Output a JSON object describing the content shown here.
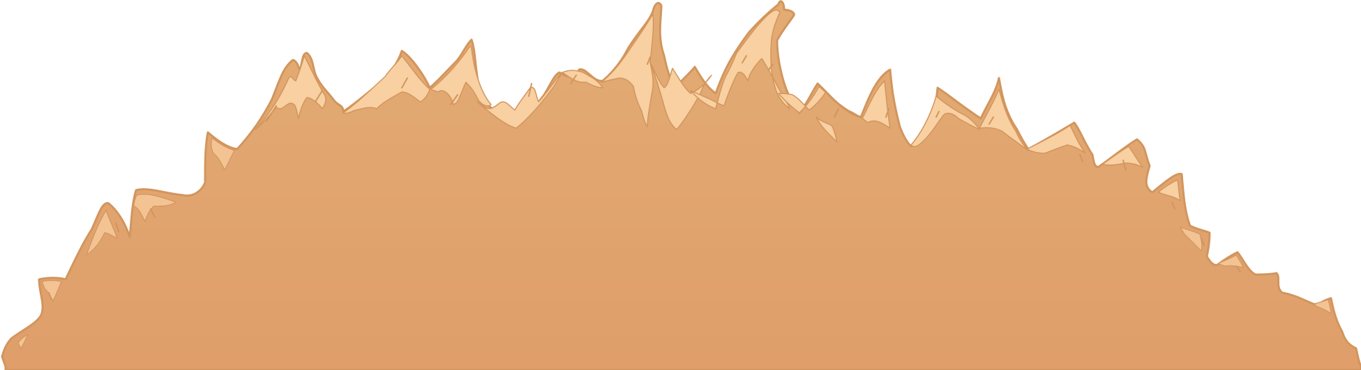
{
  "scene": {
    "subject": "hay-pile-illustration",
    "colors": {
      "background": "#ffffff",
      "body_top": "#E3AC74",
      "body_bottom": "#DF9E6A",
      "outline": "#D2955D",
      "highlight": "#F8D0A1",
      "highlight_soft": "#F3C393"
    }
  }
}
